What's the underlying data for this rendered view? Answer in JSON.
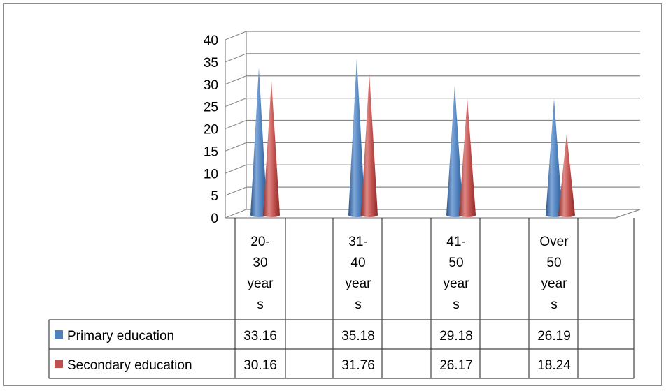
{
  "chart_data": {
    "type": "bar",
    "subtype": "3d-cone",
    "categories": [
      [
        "20-",
        "30",
        "year",
        "s"
      ],
      [
        "31-",
        "40",
        "year",
        "s"
      ],
      [
        "41-",
        "50",
        "year",
        "s"
      ],
      [
        "Over",
        "50",
        "year",
        "s"
      ]
    ],
    "series": [
      {
        "name": "Primary education",
        "values": [
          33.16,
          35.18,
          29.18,
          26.19
        ],
        "value_labels": [
          "33.16",
          "35.18",
          "29.18",
          "26.19"
        ],
        "color": "#4f81bd"
      },
      {
        "name": "Secondary education",
        "values": [
          30.16,
          31.76,
          26.17,
          18.24
        ],
        "value_labels": [
          "30.16",
          "31.76",
          "26.17",
          "18.24"
        ],
        "color": "#c0504d"
      }
    ],
    "ylim": [
      0,
      40
    ],
    "yticks": [
      0,
      5,
      10,
      15,
      20,
      25,
      30,
      35,
      40
    ],
    "grid": true,
    "legend": "data-table",
    "data_table": true
  }
}
